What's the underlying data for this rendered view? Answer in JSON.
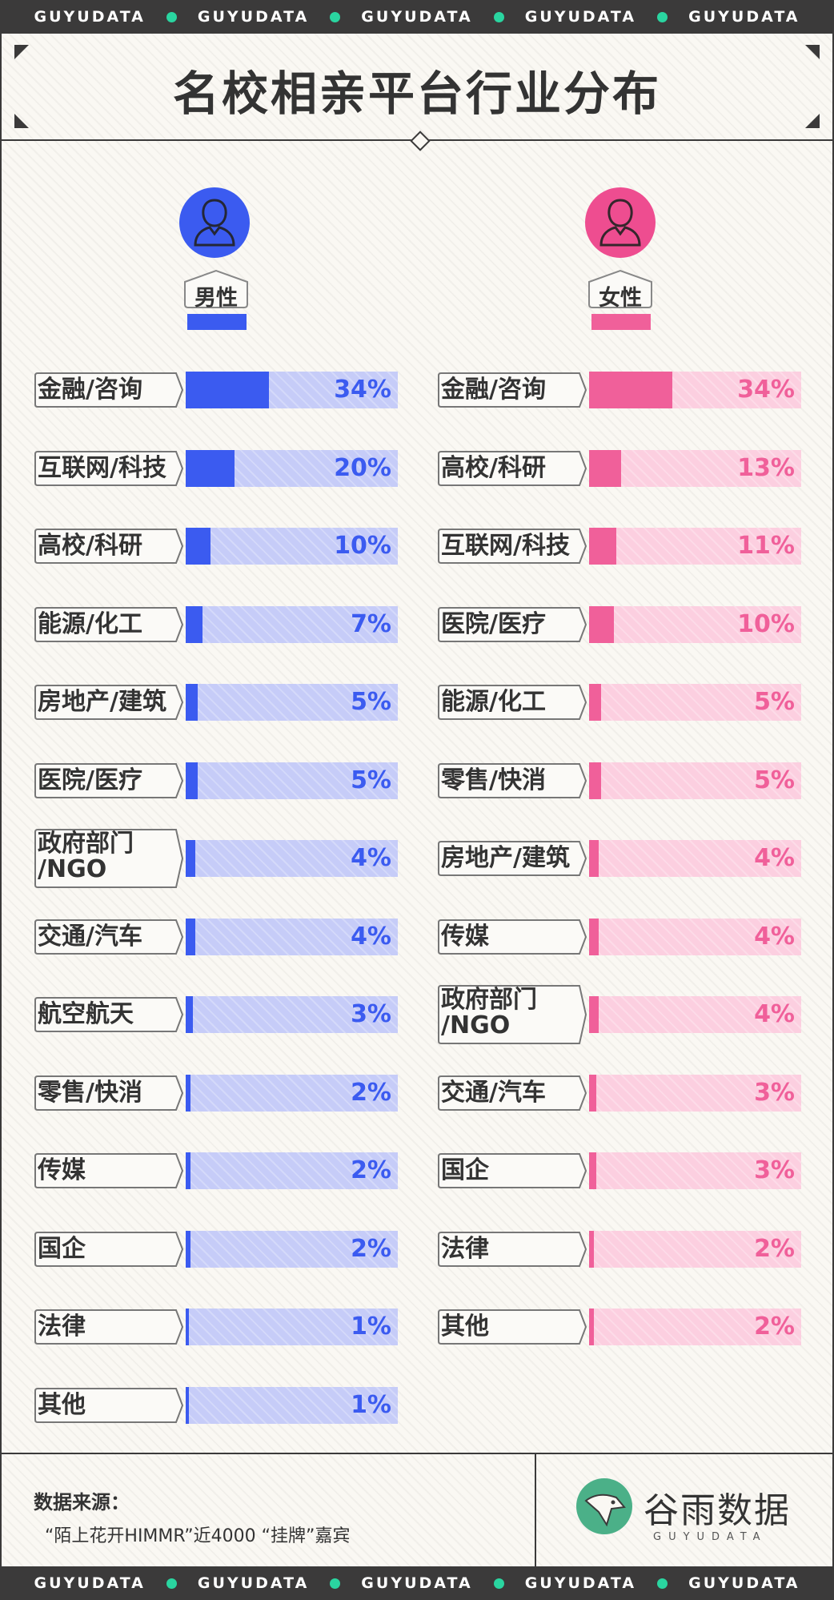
{
  "band": {
    "word": "GUYUDATA",
    "repeat": 5
  },
  "title": "名校相亲平台行业分布",
  "colors": {
    "male_fill": "#3b5bf0",
    "male_bg": "#c6ccf8",
    "male_text": "#3b5bf0",
    "female_fill": "#f0609a",
    "female_bg": "#fccfe0",
    "female_text": "#f0609a",
    "male_avatar": "#3b5bf0",
    "female_avatar": "#ee4d90"
  },
  "male": {
    "label": "男性",
    "icon": "male-user-icon"
  },
  "female": {
    "label": "女性",
    "icon": "female-user-icon"
  },
  "chart_data": [
    {
      "type": "bar",
      "title": "男性",
      "unit": "%",
      "categories": [
        "金融/咨询",
        "互联网/科技",
        "高校/科研",
        "能源/化工",
        "房地产/建筑",
        "医院/医疗",
        "政府部门\n/NGO",
        "交通/汽车",
        "航空航天",
        "零售/快消",
        "传媒",
        "国企",
        "法律",
        "其他"
      ],
      "values": [
        34,
        20,
        10,
        7,
        5,
        5,
        4,
        4,
        3,
        2,
        2,
        2,
        1,
        1
      ],
      "labels": [
        "34%",
        "20%",
        "10%",
        "7%",
        "5%",
        "5%",
        "4%",
        "4%",
        "3%",
        "2%",
        "2%",
        "2%",
        "1%",
        "1%"
      ],
      "ylim": [
        0,
        100
      ]
    },
    {
      "type": "bar",
      "title": "女性",
      "unit": "%",
      "categories": [
        "金融/咨询",
        "高校/科研",
        "互联网/科技",
        "医院/医疗",
        "能源/化工",
        "零售/快消",
        "房地产/建筑",
        "传媒",
        "政府部门\n/NGO",
        "交通/汽车",
        "国企",
        "法律",
        "其他"
      ],
      "values": [
        34,
        13,
        11,
        10,
        5,
        5,
        4,
        4,
        4,
        3,
        3,
        2,
        2
      ],
      "labels": [
        "34%",
        "13%",
        "11%",
        "10%",
        "5%",
        "5%",
        "4%",
        "4%",
        "4%",
        "3%",
        "3%",
        "2%",
        "2%"
      ],
      "ylim": [
        0,
        100
      ]
    }
  ],
  "footer": {
    "source_label": "数据来源：",
    "source_text": "“陌上花开HIMMR”近4000 “挂牌”嘉宾",
    "logo_text": "谷雨数据",
    "logo_sub": "GUYUDATA",
    "logo_icon": "guyu-logo-icon"
  }
}
